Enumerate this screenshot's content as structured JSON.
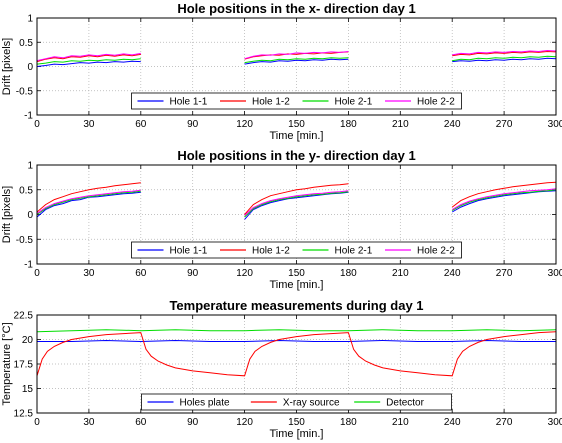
{
  "chart_data": [
    {
      "type": "line",
      "title": "Hole positions in the x- direction day 1",
      "xlabel": "Time [min.]",
      "ylabel": "Drift [pixels]",
      "xlim": [
        0,
        300
      ],
      "ylim": [
        -1,
        1
      ],
      "xticks": [
        "0",
        "30",
        "60",
        "90",
        "120",
        "150",
        "180",
        "210",
        "240",
        "270",
        "300"
      ],
      "yticks": [
        "-1",
        "-0.5",
        "0",
        "0.5",
        "1"
      ],
      "grid": true,
      "legend_position": "bottom-center",
      "series": [
        {
          "name": "Hole 1-1",
          "color": "#0000ff",
          "x": [
            0,
            5,
            10,
            15,
            20,
            25,
            30,
            35,
            40,
            45,
            50,
            55,
            60,
            120,
            125,
            130,
            135,
            140,
            145,
            150,
            155,
            160,
            165,
            170,
            175,
            180,
            240,
            245,
            250,
            255,
            260,
            265,
            270,
            275,
            280,
            285,
            290,
            295,
            300
          ],
          "y": [
            0.0,
            0.02,
            0.05,
            0.04,
            0.06,
            0.08,
            0.07,
            0.09,
            0.08,
            0.1,
            0.09,
            0.11,
            0.1,
            0.05,
            0.08,
            0.1,
            0.09,
            0.12,
            0.11,
            0.13,
            0.12,
            0.14,
            0.13,
            0.15,
            0.14,
            0.15,
            0.1,
            0.12,
            0.11,
            0.13,
            0.12,
            0.14,
            0.13,
            0.15,
            0.14,
            0.16,
            0.15,
            0.17,
            0.16
          ]
        },
        {
          "name": "Hole 1-2",
          "color": "#ff0000",
          "x": [
            0,
            5,
            10,
            15,
            20,
            25,
            30,
            35,
            40,
            45,
            50,
            55,
            60,
            120,
            125,
            130,
            135,
            140,
            145,
            150,
            155,
            160,
            165,
            170,
            175,
            180,
            240,
            245,
            250,
            255,
            260,
            265,
            270,
            275,
            280,
            285,
            290,
            295,
            300
          ],
          "y": [
            0.1,
            0.15,
            0.18,
            0.16,
            0.2,
            0.19,
            0.22,
            0.2,
            0.23,
            0.21,
            0.24,
            0.22,
            0.25,
            0.15,
            0.2,
            0.22,
            0.24,
            0.23,
            0.26,
            0.25,
            0.27,
            0.26,
            0.28,
            0.27,
            0.29,
            0.3,
            0.22,
            0.25,
            0.24,
            0.27,
            0.26,
            0.28,
            0.27,
            0.29,
            0.28,
            0.3,
            0.29,
            0.31,
            0.3
          ]
        },
        {
          "name": "Hole 2-1",
          "color": "#00dd00",
          "x": [
            0,
            5,
            10,
            15,
            20,
            25,
            30,
            35,
            40,
            45,
            50,
            55,
            60,
            120,
            125,
            130,
            135,
            140,
            145,
            150,
            155,
            160,
            165,
            170,
            175,
            180,
            240,
            245,
            250,
            255,
            260,
            265,
            270,
            275,
            280,
            285,
            290,
            295,
            300
          ],
          "y": [
            0.05,
            0.07,
            0.1,
            0.09,
            0.12,
            0.11,
            0.13,
            0.12,
            0.14,
            0.13,
            0.15,
            0.14,
            0.16,
            0.08,
            0.11,
            0.13,
            0.12,
            0.15,
            0.14,
            0.16,
            0.15,
            0.17,
            0.16,
            0.18,
            0.17,
            0.18,
            0.12,
            0.15,
            0.14,
            0.17,
            0.16,
            0.18,
            0.17,
            0.19,
            0.18,
            0.2,
            0.19,
            0.21,
            0.2
          ]
        },
        {
          "name": "Hole 2-2",
          "color": "#ff00ff",
          "x": [
            0,
            5,
            10,
            15,
            20,
            25,
            30,
            35,
            40,
            45,
            50,
            55,
            60,
            120,
            125,
            130,
            135,
            140,
            145,
            150,
            155,
            160,
            165,
            170,
            175,
            180,
            240,
            245,
            250,
            255,
            260,
            265,
            270,
            275,
            280,
            285,
            290,
            295,
            300
          ],
          "y": [
            0.12,
            0.16,
            0.2,
            0.18,
            0.22,
            0.21,
            0.24,
            0.22,
            0.25,
            0.23,
            0.26,
            0.24,
            0.27,
            0.16,
            0.21,
            0.24,
            0.23,
            0.26,
            0.25,
            0.28,
            0.27,
            0.29,
            0.28,
            0.3,
            0.29,
            0.31,
            0.24,
            0.27,
            0.26,
            0.29,
            0.28,
            0.3,
            0.29,
            0.31,
            0.3,
            0.32,
            0.31,
            0.33,
            0.32
          ]
        }
      ]
    },
    {
      "type": "line",
      "title": "Hole positions in the y- direction day 1",
      "xlabel": "Time [min.]",
      "ylabel": "Drift [pixels]",
      "xlim": [
        0,
        300
      ],
      "ylim": [
        -1,
        1
      ],
      "xticks": [
        "0",
        "30",
        "60",
        "90",
        "120",
        "150",
        "180",
        "210",
        "240",
        "270",
        "300"
      ],
      "yticks": [
        "-1",
        "-0.5",
        "0",
        "0.5",
        "1"
      ],
      "grid": true,
      "legend_position": "bottom-center",
      "series": [
        {
          "name": "Hole 1-1",
          "color": "#0000ff",
          "x": [
            0,
            5,
            10,
            15,
            20,
            25,
            30,
            35,
            40,
            45,
            50,
            55,
            60,
            120,
            125,
            130,
            135,
            140,
            145,
            150,
            155,
            160,
            165,
            170,
            175,
            180,
            240,
            245,
            250,
            255,
            260,
            265,
            270,
            275,
            280,
            285,
            290,
            295,
            300
          ],
          "y": [
            -0.05,
            0.1,
            0.18,
            0.22,
            0.28,
            0.3,
            0.35,
            0.36,
            0.38,
            0.4,
            0.42,
            0.43,
            0.45,
            -0.1,
            0.1,
            0.18,
            0.24,
            0.28,
            0.32,
            0.34,
            0.36,
            0.38,
            0.4,
            0.42,
            0.43,
            0.45,
            0.05,
            0.15,
            0.22,
            0.28,
            0.32,
            0.35,
            0.38,
            0.4,
            0.42,
            0.44,
            0.46,
            0.47,
            0.48
          ]
        },
        {
          "name": "Hole 1-2",
          "color": "#ff0000",
          "x": [
            0,
            5,
            10,
            15,
            20,
            25,
            30,
            35,
            40,
            45,
            50,
            55,
            60,
            120,
            125,
            130,
            135,
            140,
            145,
            150,
            155,
            160,
            165,
            170,
            175,
            180,
            240,
            245,
            250,
            255,
            260,
            265,
            270,
            275,
            280,
            285,
            290,
            295,
            300
          ],
          "y": [
            0.05,
            0.2,
            0.3,
            0.36,
            0.42,
            0.46,
            0.5,
            0.53,
            0.55,
            0.58,
            0.6,
            0.62,
            0.64,
            0.0,
            0.2,
            0.3,
            0.38,
            0.42,
            0.46,
            0.5,
            0.52,
            0.55,
            0.57,
            0.59,
            0.6,
            0.62,
            0.15,
            0.28,
            0.36,
            0.42,
            0.46,
            0.5,
            0.53,
            0.56,
            0.58,
            0.6,
            0.62,
            0.64,
            0.65
          ]
        },
        {
          "name": "Hole 2-1",
          "color": "#00dd00",
          "x": [
            0,
            5,
            10,
            15,
            20,
            25,
            30,
            35,
            40,
            45,
            50,
            55,
            60,
            120,
            125,
            130,
            135,
            140,
            145,
            150,
            155,
            160,
            165,
            170,
            175,
            180,
            240,
            245,
            250,
            255,
            260,
            265,
            270,
            275,
            280,
            285,
            290,
            295,
            300
          ],
          "y": [
            0.0,
            0.12,
            0.2,
            0.25,
            0.3,
            0.33,
            0.36,
            0.38,
            0.4,
            0.42,
            0.44,
            0.45,
            0.47,
            -0.05,
            0.12,
            0.2,
            0.26,
            0.3,
            0.33,
            0.36,
            0.38,
            0.4,
            0.41,
            0.43,
            0.44,
            0.46,
            0.08,
            0.18,
            0.25,
            0.3,
            0.34,
            0.37,
            0.4,
            0.42,
            0.44,
            0.45,
            0.47,
            0.48,
            0.5
          ]
        },
        {
          "name": "Hole 2-2",
          "color": "#ff00ff",
          "x": [
            0,
            5,
            10,
            15,
            20,
            25,
            30,
            35,
            40,
            45,
            50,
            55,
            60,
            120,
            125,
            130,
            135,
            140,
            145,
            150,
            155,
            160,
            165,
            170,
            175,
            180,
            240,
            245,
            250,
            255,
            260,
            265,
            270,
            275,
            280,
            285,
            290,
            295,
            300
          ],
          "y": [
            0.02,
            0.14,
            0.22,
            0.27,
            0.32,
            0.35,
            0.38,
            0.4,
            0.42,
            0.44,
            0.46,
            0.47,
            0.49,
            -0.02,
            0.14,
            0.22,
            0.28,
            0.32,
            0.35,
            0.38,
            0.4,
            0.42,
            0.43,
            0.45,
            0.46,
            0.48,
            0.1,
            0.2,
            0.27,
            0.32,
            0.36,
            0.39,
            0.42,
            0.44,
            0.46,
            0.48,
            0.49,
            0.5,
            0.52
          ]
        }
      ]
    },
    {
      "type": "line",
      "title": "Temperature measurements during day 1",
      "xlabel": "Time [min.]",
      "ylabel": "Temperature [°C]",
      "xlim": [
        0,
        300
      ],
      "ylim": [
        12.5,
        22.5
      ],
      "xticks": [
        "0",
        "30",
        "60",
        "90",
        "120",
        "150",
        "180",
        "210",
        "240",
        "270",
        "300"
      ],
      "yticks": [
        "12.5",
        "15",
        "17.5",
        "20",
        "22.5"
      ],
      "grid": true,
      "legend_position": "bottom-center",
      "series": [
        {
          "name": "Holes plate",
          "color": "#0000ff",
          "x": [
            0,
            20,
            40,
            60,
            80,
            100,
            120,
            140,
            160,
            180,
            200,
            220,
            240,
            260,
            280,
            300
          ],
          "y": [
            19.8,
            19.8,
            19.9,
            19.8,
            19.9,
            19.8,
            19.8,
            19.9,
            19.8,
            19.8,
            19.9,
            19.8,
            19.8,
            19.9,
            19.8,
            19.8
          ]
        },
        {
          "name": "X-ray source",
          "color": "#ff0000",
          "x": [
            0,
            3,
            6,
            10,
            15,
            20,
            30,
            40,
            50,
            60,
            63,
            66,
            70,
            75,
            80,
            90,
            100,
            110,
            120,
            123,
            126,
            130,
            135,
            140,
            150,
            160,
            170,
            180,
            183,
            186,
            190,
            195,
            200,
            210,
            220,
            230,
            240,
            243,
            246,
            250,
            255,
            260,
            270,
            280,
            290,
            300
          ],
          "y": [
            16.3,
            18.0,
            18.8,
            19.3,
            19.7,
            20.0,
            20.3,
            20.5,
            20.6,
            20.7,
            19.0,
            18.3,
            17.8,
            17.4,
            17.1,
            16.8,
            16.6,
            16.4,
            16.3,
            18.0,
            18.8,
            19.3,
            19.7,
            20.0,
            20.3,
            20.5,
            20.6,
            20.7,
            19.0,
            18.3,
            17.8,
            17.4,
            17.1,
            16.8,
            16.6,
            16.4,
            16.3,
            18.0,
            18.8,
            19.3,
            19.7,
            20.0,
            20.3,
            20.5,
            20.7,
            20.8
          ]
        },
        {
          "name": "Detector",
          "color": "#00dd00",
          "x": [
            0,
            20,
            40,
            60,
            80,
            100,
            120,
            140,
            160,
            180,
            200,
            220,
            240,
            260,
            280,
            300
          ],
          "y": [
            20.8,
            20.9,
            21.0,
            20.9,
            21.0,
            20.9,
            20.9,
            21.0,
            20.9,
            20.9,
            21.0,
            20.9,
            20.9,
            21.0,
            20.9,
            21.0
          ]
        }
      ]
    }
  ]
}
